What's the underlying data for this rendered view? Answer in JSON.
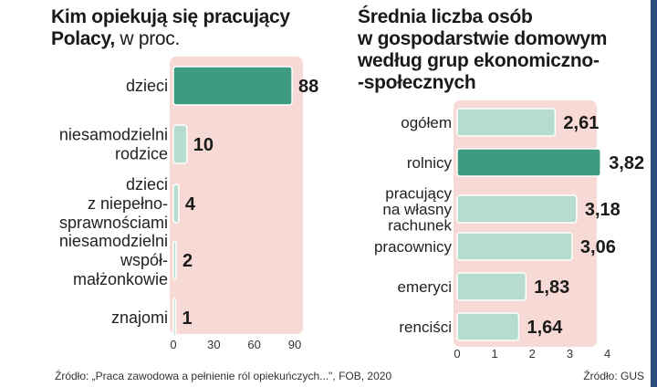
{
  "titles": {
    "left_main": "Kim opiekują się pracujący",
    "left_second_bold": "Polacy,",
    "left_second_light": " w proc.",
    "right_lines": [
      "Średnia liczba osób",
      "w gospodarstwie domowym",
      "według grup ekonomiczno-",
      "-społecznych"
    ]
  },
  "sources": {
    "left": "Źródło: „Praca zawodowa a pełnienie ról opiekuńczych...\", FOB, 2020",
    "right": "Źródło: GUS"
  },
  "colors": {
    "highlight": "#3e9b82",
    "normal": "#b5dccd",
    "panel": "#f7dad6"
  },
  "chart_data": [
    {
      "type": "bar",
      "orientation": "horizontal",
      "categories": [
        [
          "dzieci"
        ],
        [
          "niesamodzielni",
          "rodzice"
        ],
        [
          "dzieci",
          "z niepełno-",
          "sprawnościami"
        ],
        [
          "niesamodzielni",
          "współ-",
          "małżonkowie"
        ],
        [
          "znajomi"
        ]
      ],
      "values": [
        88,
        10,
        4,
        2,
        1
      ],
      "value_labels": [
        "88",
        "10",
        "4",
        "2",
        "1"
      ],
      "highlight_index": 0,
      "xlim": [
        0,
        90
      ],
      "xticks": [
        "0",
        "30",
        "60",
        "90"
      ],
      "grid": false
    },
    {
      "type": "bar",
      "orientation": "horizontal",
      "categories": [
        [
          "ogółem"
        ],
        [
          "rolnicy"
        ],
        [
          "pracujący",
          "na własny",
          "rachunek"
        ],
        [
          "pracownicy"
        ],
        [
          "emeryci"
        ],
        [
          "renciści"
        ]
      ],
      "values": [
        2.61,
        3.82,
        3.18,
        3.06,
        1.83,
        1.64
      ],
      "value_labels": [
        "2,61",
        "3,82",
        "3,18",
        "3,06",
        "1,83",
        "1,64"
      ],
      "highlight_index": 1,
      "xlim": [
        0,
        4
      ],
      "xticks": [
        "0",
        "1",
        "2",
        "3",
        "4"
      ],
      "grid": false
    }
  ]
}
